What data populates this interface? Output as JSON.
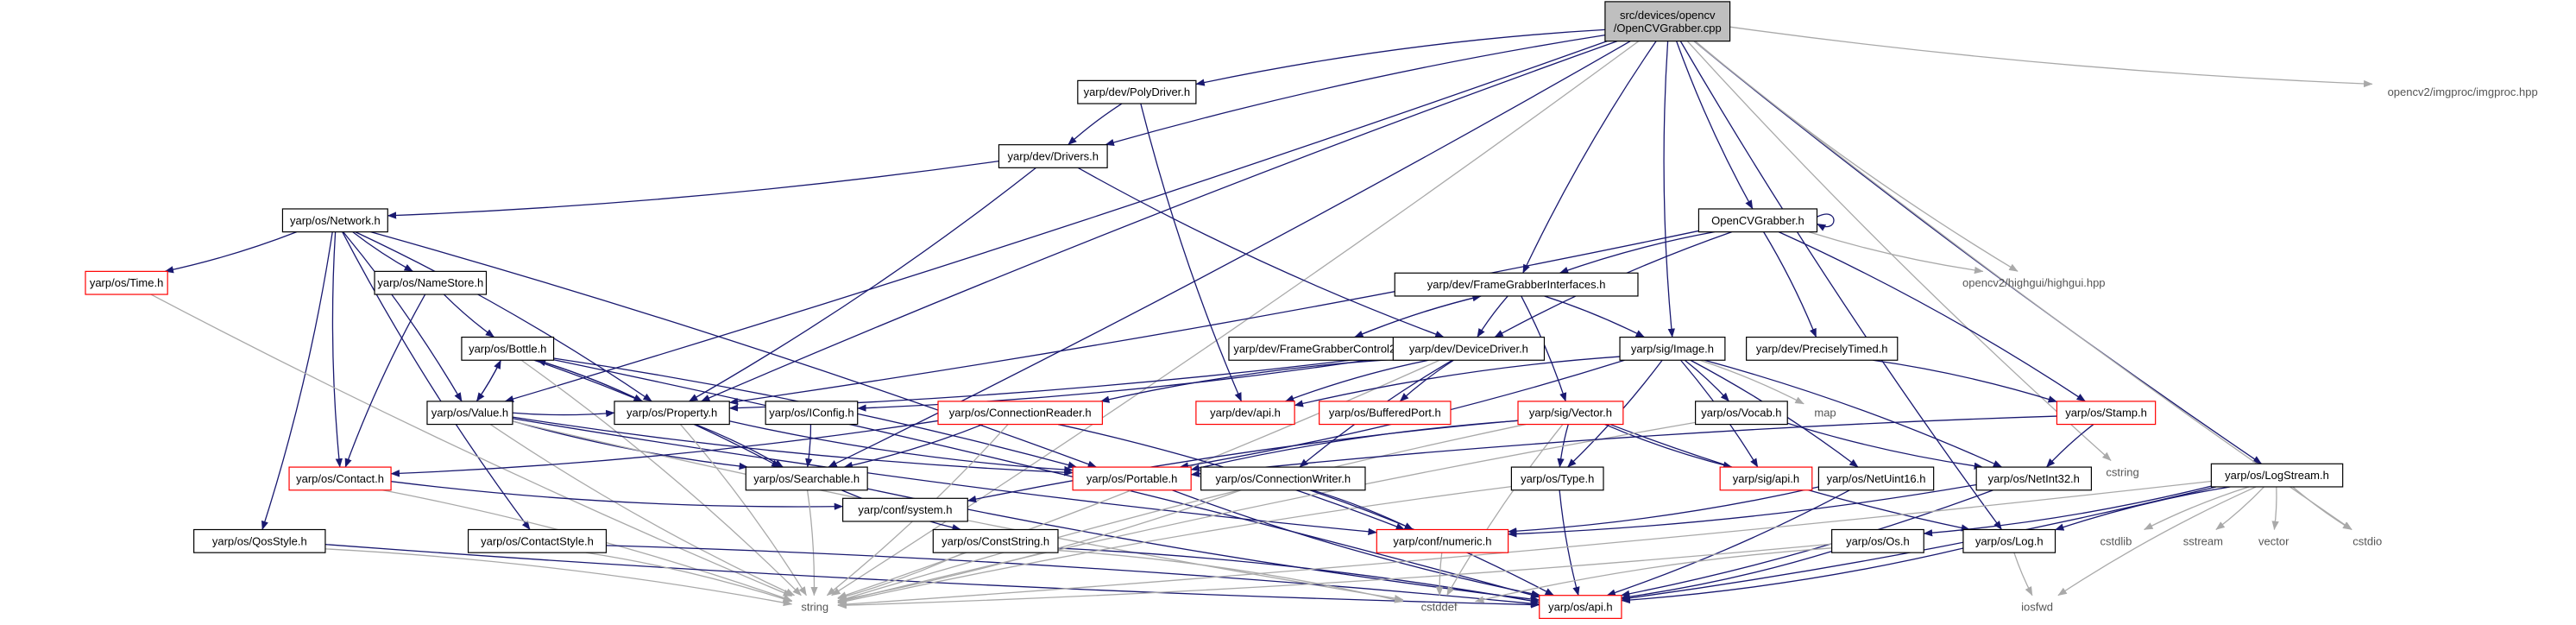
{
  "diagram": {
    "type": "include-dependency-graph",
    "colors": {
      "edge": "#191970",
      "system_edge": "#a9a9a9",
      "root_fill": "#bfbfbf",
      "node_border": "#000000",
      "incomplete_border": "#ff0000",
      "system_text": "#555555"
    },
    "nodes": [
      {
        "id": "root",
        "lines": [
          "src/devices/opencv",
          "/OpenCVGrabber.cpp"
        ],
        "kind": "root"
      },
      {
        "id": "polydriver",
        "lines": [
          "yarp/dev/PolyDriver.h"
        ],
        "kind": "normal"
      },
      {
        "id": "drivers",
        "lines": [
          "yarp/dev/Drivers.h"
        ],
        "kind": "normal"
      },
      {
        "id": "network",
        "lines": [
          "yarp/os/Network.h"
        ],
        "kind": "normal"
      },
      {
        "id": "time",
        "lines": [
          "yarp/os/Time.h"
        ],
        "kind": "incomplete"
      },
      {
        "id": "namestore",
        "lines": [
          "yarp/os/NameStore.h"
        ],
        "kind": "normal"
      },
      {
        "id": "bottle",
        "lines": [
          "yarp/os/Bottle.h"
        ],
        "kind": "normal"
      },
      {
        "id": "value",
        "lines": [
          "yarp/os/Value.h"
        ],
        "kind": "normal"
      },
      {
        "id": "property",
        "lines": [
          "yarp/os/Property.h"
        ],
        "kind": "normal"
      },
      {
        "id": "iconfig",
        "lines": [
          "yarp/os/IConfig.h"
        ],
        "kind": "normal"
      },
      {
        "id": "contact",
        "lines": [
          "yarp/os/Contact.h"
        ],
        "kind": "incomplete"
      },
      {
        "id": "searchable",
        "lines": [
          "yarp/os/Searchable.h"
        ],
        "kind": "normal"
      },
      {
        "id": "portable",
        "lines": [
          "yarp/os/Portable.h"
        ],
        "kind": "incomplete"
      },
      {
        "id": "qosstyle",
        "lines": [
          "yarp/os/QosStyle.h"
        ],
        "kind": "normal"
      },
      {
        "id": "contactstyle",
        "lines": [
          "yarp/os/ContactStyle.h"
        ],
        "kind": "normal"
      },
      {
        "id": "confsystem",
        "lines": [
          "yarp/conf/system.h"
        ],
        "kind": "normal"
      },
      {
        "id": "conststring",
        "lines": [
          "yarp/os/ConstString.h"
        ],
        "kind": "normal"
      },
      {
        "id": "string",
        "lines": [
          "string"
        ],
        "kind": "system"
      },
      {
        "id": "cstddef",
        "lines": [
          "cstddef"
        ],
        "kind": "system"
      },
      {
        "id": "osapi",
        "lines": [
          "yarp/os/api.h"
        ],
        "kind": "incomplete"
      },
      {
        "id": "ocvgrabber",
        "lines": [
          "OpenCVGrabber.h"
        ],
        "kind": "normal"
      },
      {
        "id": "fgi",
        "lines": [
          "yarp/dev/FrameGrabberInterfaces.h"
        ],
        "kind": "normal"
      },
      {
        "id": "fgc2",
        "lines": [
          "yarp/dev/FrameGrabberControl2.h"
        ],
        "kind": "normal"
      },
      {
        "id": "devicedriver",
        "lines": [
          "yarp/dev/DeviceDriver.h"
        ],
        "kind": "normal"
      },
      {
        "id": "connreader",
        "lines": [
          "yarp/os/ConnectionReader.h"
        ],
        "kind": "incomplete"
      },
      {
        "id": "devapi",
        "lines": [
          "yarp/dev/api.h"
        ],
        "kind": "incomplete"
      },
      {
        "id": "bufport",
        "lines": [
          "yarp/os/BufferedPort.h"
        ],
        "kind": "incomplete"
      },
      {
        "id": "image",
        "lines": [
          "yarp/sig/Image.h"
        ],
        "kind": "normal"
      },
      {
        "id": "vector",
        "lines": [
          "yarp/sig/Vector.h"
        ],
        "kind": "incomplete"
      },
      {
        "id": "vocab",
        "lines": [
          "yarp/os/Vocab.h"
        ],
        "kind": "normal"
      },
      {
        "id": "map",
        "lines": [
          "map"
        ],
        "kind": "system"
      },
      {
        "id": "type",
        "lines": [
          "yarp/os/Type.h"
        ],
        "kind": "normal"
      },
      {
        "id": "connwriter",
        "lines": [
          "yarp/os/ConnectionWriter.h"
        ],
        "kind": "normal"
      },
      {
        "id": "numeric",
        "lines": [
          "yarp/conf/numeric.h"
        ],
        "kind": "incomplete"
      },
      {
        "id": "sigapi",
        "lines": [
          "yarp/sig/api.h"
        ],
        "kind": "incomplete"
      },
      {
        "id": "netuint16",
        "lines": [
          "yarp/os/NetUint16.h"
        ],
        "kind": "normal"
      },
      {
        "id": "netint32",
        "lines": [
          "yarp/os/NetInt32.h"
        ],
        "kind": "normal"
      },
      {
        "id": "precisely",
        "lines": [
          "yarp/dev/PreciselyTimed.h"
        ],
        "kind": "normal"
      },
      {
        "id": "stamp",
        "lines": [
          "yarp/os/Stamp.h"
        ],
        "kind": "incomplete"
      },
      {
        "id": "highgui",
        "lines": [
          "opencv2/highgui/highgui.hpp"
        ],
        "kind": "system"
      },
      {
        "id": "imgproc",
        "lines": [
          "opencv2/imgproc/imgproc.hpp"
        ],
        "kind": "system"
      },
      {
        "id": "cstring",
        "lines": [
          "cstring"
        ],
        "kind": "system"
      },
      {
        "id": "logstream",
        "lines": [
          "yarp/os/LogStream.h"
        ],
        "kind": "normal"
      },
      {
        "id": "cstdlib",
        "lines": [
          "cstdlib"
        ],
        "kind": "system"
      },
      {
        "id": "sstream",
        "lines": [
          "sstream"
        ],
        "kind": "system"
      },
      {
        "id": "stdvector",
        "lines": [
          "vector"
        ],
        "kind": "system"
      },
      {
        "id": "cstdio",
        "lines": [
          "cstdio"
        ],
        "kind": "system"
      },
      {
        "id": "os",
        "lines": [
          "yarp/os/Os.h"
        ],
        "kind": "normal"
      },
      {
        "id": "log",
        "lines": [
          "yarp/os/Log.h"
        ],
        "kind": "normal"
      },
      {
        "id": "iosfwd",
        "lines": [
          "iosfwd"
        ],
        "kind": "system"
      }
    ],
    "edges": [
      [
        "root",
        "polydriver"
      ],
      [
        "root",
        "drivers"
      ],
      [
        "root",
        "property"
      ],
      [
        "root",
        "value"
      ],
      [
        "root",
        "searchable"
      ],
      [
        "root",
        "string"
      ],
      [
        "root",
        "fgi"
      ],
      [
        "root",
        "image"
      ],
      [
        "root",
        "ocvgrabber"
      ],
      [
        "root",
        "highgui"
      ],
      [
        "root",
        "imgproc"
      ],
      [
        "root",
        "cstring"
      ],
      [
        "root",
        "logstream"
      ],
      [
        "root",
        "cstdio"
      ],
      [
        "root",
        "log"
      ],
      [
        "polydriver",
        "drivers"
      ],
      [
        "polydriver",
        "devapi"
      ],
      [
        "drivers",
        "network"
      ],
      [
        "drivers",
        "property"
      ],
      [
        "drivers",
        "devicedriver"
      ],
      [
        "network",
        "time"
      ],
      [
        "network",
        "namestore"
      ],
      [
        "network",
        "value"
      ],
      [
        "network",
        "property"
      ],
      [
        "network",
        "contact"
      ],
      [
        "network",
        "portable"
      ],
      [
        "network",
        "qosstyle"
      ],
      [
        "network",
        "contactstyle"
      ],
      [
        "time",
        "string"
      ],
      [
        "namestore",
        "bottle"
      ],
      [
        "namestore",
        "contact"
      ],
      [
        "bottle",
        "value"
      ],
      [
        "bottle",
        "property"
      ],
      [
        "bottle",
        "searchable"
      ],
      [
        "bottle",
        "portable"
      ],
      [
        "bottle",
        "string"
      ],
      [
        "bottle",
        "osapi"
      ],
      [
        "value",
        "bottle"
      ],
      [
        "value",
        "property"
      ],
      [
        "value",
        "searchable"
      ],
      [
        "value",
        "portable"
      ],
      [
        "value",
        "string"
      ],
      [
        "value",
        "cstddef"
      ],
      [
        "value",
        "numeric"
      ],
      [
        "property",
        "bottle"
      ],
      [
        "property",
        "searchable"
      ],
      [
        "property",
        "portable"
      ],
      [
        "property",
        "string"
      ],
      [
        "iconfig",
        "searchable"
      ],
      [
        "contact",
        "string"
      ],
      [
        "contact",
        "confsystem"
      ],
      [
        "searchable",
        "string"
      ],
      [
        "searchable",
        "conststring"
      ],
      [
        "searchable",
        "osapi"
      ],
      [
        "portable",
        "osapi"
      ],
      [
        "qosstyle",
        "string"
      ],
      [
        "qosstyle",
        "osapi"
      ],
      [
        "contactstyle",
        "string"
      ],
      [
        "contactstyle",
        "osapi"
      ],
      [
        "conststring",
        "string"
      ],
      [
        "conststring",
        "cstddef"
      ],
      [
        "conststring",
        "osapi"
      ],
      [
        "ocvgrabber",
        "ocvgrabber"
      ],
      [
        "ocvgrabber",
        "fgi"
      ],
      [
        "ocvgrabber",
        "devicedriver"
      ],
      [
        "ocvgrabber",
        "property"
      ],
      [
        "ocvgrabber",
        "precisely"
      ],
      [
        "ocvgrabber",
        "stamp"
      ],
      [
        "ocvgrabber",
        "highgui"
      ],
      [
        "fgi",
        "fgc2"
      ],
      [
        "fgi",
        "devicedriver"
      ],
      [
        "fgi",
        "image"
      ],
      [
        "fgi",
        "vector"
      ],
      [
        "fgc2",
        "fgi"
      ],
      [
        "devicedriver",
        "property"
      ],
      [
        "devicedriver",
        "iconfig"
      ],
      [
        "devicedriver",
        "devapi"
      ],
      [
        "devicedriver",
        "bufport"
      ],
      [
        "devicedriver",
        "connreader"
      ],
      [
        "devicedriver",
        "connwriter"
      ],
      [
        "devicedriver",
        "string"
      ],
      [
        "connreader",
        "contact"
      ],
      [
        "connreader",
        "searchable"
      ],
      [
        "connreader",
        "numeric"
      ],
      [
        "connreader",
        "string"
      ],
      [
        "image",
        "devapi"
      ],
      [
        "image",
        "vocab"
      ],
      [
        "image",
        "map"
      ],
      [
        "image",
        "type"
      ],
      [
        "image",
        "portable"
      ],
      [
        "image",
        "sigapi"
      ],
      [
        "image",
        "netuint16"
      ],
      [
        "image",
        "netint32"
      ],
      [
        "vector",
        "portable"
      ],
      [
        "vector",
        "type"
      ],
      [
        "vector",
        "sigapi"
      ],
      [
        "vector",
        "confsystem"
      ],
      [
        "vector",
        "string"
      ],
      [
        "vector",
        "cstddef"
      ],
      [
        "vector",
        "log"
      ],
      [
        "vocab",
        "netint32"
      ],
      [
        "vocab",
        "string"
      ],
      [
        "type",
        "string"
      ],
      [
        "type",
        "osapi"
      ],
      [
        "connwriter",
        "numeric"
      ],
      [
        "connwriter",
        "string"
      ],
      [
        "connwriter",
        "osapi"
      ],
      [
        "numeric",
        "cstddef"
      ],
      [
        "netuint16",
        "numeric"
      ],
      [
        "netuint16",
        "osapi"
      ],
      [
        "netint32",
        "numeric"
      ],
      [
        "netint32",
        "osapi"
      ],
      [
        "precisely",
        "stamp"
      ],
      [
        "stamp",
        "portable"
      ],
      [
        "stamp",
        "netint32"
      ],
      [
        "logstream",
        "cstdlib"
      ],
      [
        "logstream",
        "sstream"
      ],
      [
        "logstream",
        "stdvector"
      ],
      [
        "logstream",
        "cstdio"
      ],
      [
        "logstream",
        "os"
      ],
      [
        "logstream",
        "log"
      ],
      [
        "logstream",
        "osapi"
      ],
      [
        "logstream",
        "iosfwd"
      ],
      [
        "logstream",
        "string"
      ],
      [
        "os",
        "string"
      ],
      [
        "os",
        "cstddef"
      ],
      [
        "os",
        "osapi"
      ],
      [
        "log",
        "osapi"
      ],
      [
        "log",
        "iosfwd"
      ]
    ]
  }
}
